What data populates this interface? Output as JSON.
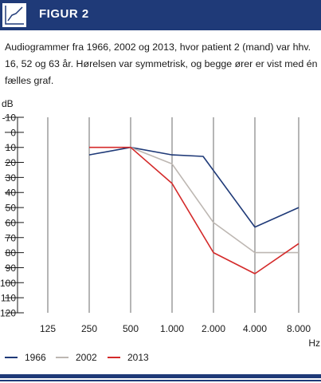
{
  "header": {
    "title": "FIGUR 2",
    "icon": "line-chart-icon",
    "color": "#1f3a78"
  },
  "caption": "Audiogrammer fra 1966, 2002 og 2013, hvor patient 2 (mand) var hhv. 16, 52 og 63 år. Hørelsen var symmetrisk, og begge ører er vist med én fælles graf.",
  "chart_data": {
    "type": "line",
    "ylabel": "dB",
    "xlabel": "Hz",
    "x_categories": [
      "125",
      "250",
      "500",
      "1.000",
      "2.000",
      "4.000",
      "8.000"
    ],
    "y_ticks": [
      -10,
      0,
      10,
      20,
      30,
      40,
      50,
      60,
      70,
      80,
      90,
      100,
      110,
      120
    ],
    "ylim": [
      -10,
      120
    ],
    "y_inverted": true,
    "grid": "vertical",
    "legend_position": "bottom",
    "series": [
      {
        "name": "1966",
        "color": "#1f3a78",
        "points": [
          [
            1,
            15
          ],
          [
            2,
            10
          ],
          [
            3,
            15
          ],
          [
            3.75,
            16
          ],
          [
            5,
            63
          ],
          [
            6,
            50
          ]
        ]
      },
      {
        "name": "2002",
        "color": "#bdb7b2",
        "points": [
          [
            2,
            10
          ],
          [
            3,
            21
          ],
          [
            4,
            60
          ],
          [
            5,
            80
          ],
          [
            6,
            80
          ]
        ]
      },
      {
        "name": "2013",
        "color": "#d42a2a",
        "points": [
          [
            1,
            10
          ],
          [
            2,
            10
          ],
          [
            3,
            34
          ],
          [
            4,
            80
          ],
          [
            5,
            94
          ],
          [
            6,
            74
          ]
        ]
      }
    ]
  }
}
